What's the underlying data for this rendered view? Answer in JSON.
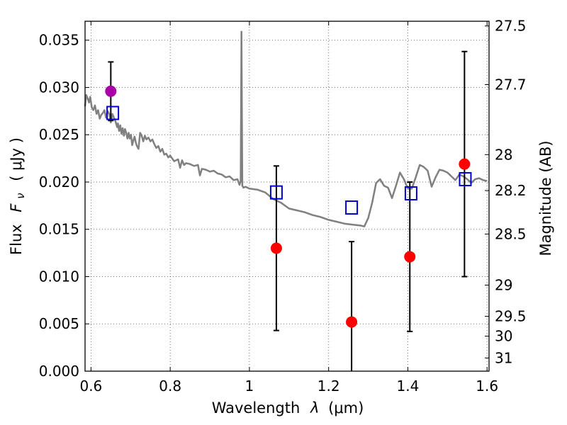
{
  "chart_data": {
    "type": "scatter",
    "title": "",
    "xlabel_text": "Wavelength",
    "xlabel_symbol": "λ",
    "xlabel_unit": "(μm)",
    "ylabel_text": "Flux",
    "ylabel_symbol": "F",
    "ylabel_subscript": "ν",
    "ylabel_unit": "( μJy )",
    "y2label": "Magnitude (AB)",
    "xlim": [
      0.585,
      1.605
    ],
    "ylim": [
      0.0,
      0.037
    ],
    "grid": true,
    "x_ticks": [
      {
        "value": 0.6,
        "label": "0.6"
      },
      {
        "value": 0.8,
        "label": "0.8"
      },
      {
        "value": 1.0,
        "label": "1"
      },
      {
        "value": 1.2,
        "label": "1.2"
      },
      {
        "value": 1.4,
        "label": "1.4"
      },
      {
        "value": 1.6,
        "label": "1.6"
      }
    ],
    "y_ticks": [
      {
        "value": 0.0,
        "label": "0.000"
      },
      {
        "value": 0.005,
        "label": "0.005"
      },
      {
        "value": 0.01,
        "label": "0.010"
      },
      {
        "value": 0.015,
        "label": "0.015"
      },
      {
        "value": 0.02,
        "label": "0.020"
      },
      {
        "value": 0.025,
        "label": "0.025"
      },
      {
        "value": 0.03,
        "label": "0.030"
      },
      {
        "value": 0.035,
        "label": "0.035"
      }
    ],
    "y2_ticks": [
      {
        "flux": 0.0365,
        "label": "27.5"
      },
      {
        "flux": 0.0303,
        "label": "27.7"
      },
      {
        "flux": 0.0229,
        "label": "28"
      },
      {
        "flux": 0.0191,
        "label": "28.2"
      },
      {
        "flux": 0.0145,
        "label": "28.5"
      },
      {
        "flux": 0.0091,
        "label": "29"
      },
      {
        "flux": 0.0058,
        "label": "29.5"
      },
      {
        "flux": 0.0037,
        "label": "30"
      },
      {
        "flux": 0.0014,
        "label": "31"
      }
    ],
    "colors": {
      "spectrum": "#808080",
      "photometry_red": "#ff0000",
      "photometry_magenta": "#aa00aa",
      "model": "#0000cc",
      "errorbar": "#000000"
    },
    "spectrum": {
      "x": [
        0.585,
        0.588,
        0.592,
        0.595,
        0.598,
        0.602,
        0.606,
        0.61,
        0.614,
        0.618,
        0.622,
        0.626,
        0.63,
        0.634,
        0.638,
        0.642,
        0.646,
        0.65,
        0.654,
        0.658,
        0.662,
        0.666,
        0.668,
        0.671,
        0.674,
        0.677,
        0.68,
        0.683,
        0.686,
        0.689,
        0.692,
        0.695,
        0.698,
        0.701,
        0.704,
        0.707,
        0.71,
        0.713,
        0.716,
        0.72,
        0.724,
        0.728,
        0.732,
        0.736,
        0.74,
        0.745,
        0.75,
        0.755,
        0.76,
        0.765,
        0.77,
        0.775,
        0.78,
        0.785,
        0.79,
        0.795,
        0.8,
        0.81,
        0.82,
        0.825,
        0.83,
        0.835,
        0.84,
        0.85,
        0.86,
        0.87,
        0.875,
        0.88,
        0.89,
        0.9,
        0.91,
        0.92,
        0.93,
        0.94,
        0.95,
        0.96,
        0.97,
        0.975,
        0.978,
        0.98,
        0.982,
        0.985,
        0.99,
        1.0,
        1.02,
        1.04,
        1.06,
        1.08,
        1.1,
        1.12,
        1.14,
        1.16,
        1.18,
        1.2,
        1.22,
        1.24,
        1.26,
        1.28,
        1.29,
        1.3,
        1.31,
        1.32,
        1.33,
        1.34,
        1.35,
        1.36,
        1.37,
        1.38,
        1.39,
        1.4,
        1.41,
        1.42,
        1.43,
        1.44,
        1.45,
        1.46,
        1.47,
        1.48,
        1.49,
        1.5,
        1.51,
        1.52,
        1.53,
        1.54,
        1.55,
        1.56,
        1.57,
        1.58,
        1.59,
        1.6
      ],
      "y": [
        0.028,
        0.0292,
        0.0288,
        0.0284,
        0.029,
        0.0279,
        0.0276,
        0.0281,
        0.0272,
        0.0276,
        0.0267,
        0.0271,
        0.0273,
        0.0276,
        0.0268,
        0.0275,
        0.0272,
        0.0263,
        0.0272,
        0.0268,
        0.0264,
        0.0258,
        0.0262,
        0.0254,
        0.026,
        0.0251,
        0.0257,
        0.0249,
        0.0256,
        0.0252,
        0.0246,
        0.0252,
        0.0246,
        0.025,
        0.0239,
        0.0244,
        0.0248,
        0.0242,
        0.0238,
        0.0235,
        0.0252,
        0.0249,
        0.0243,
        0.0249,
        0.0245,
        0.0247,
        0.0243,
        0.0245,
        0.024,
        0.0236,
        0.0238,
        0.0232,
        0.0235,
        0.0229,
        0.023,
        0.0226,
        0.0228,
        0.0222,
        0.0224,
        0.0215,
        0.0223,
        0.0218,
        0.022,
        0.0219,
        0.0217,
        0.0218,
        0.0207,
        0.0214,
        0.0213,
        0.0211,
        0.0212,
        0.0209,
        0.0208,
        0.0205,
        0.0206,
        0.0202,
        0.0203,
        0.0197,
        0.0201,
        0.0359,
        0.0196,
        0.0194,
        0.0195,
        0.0193,
        0.0192,
        0.0189,
        0.0182,
        0.0178,
        0.0172,
        0.017,
        0.0168,
        0.0165,
        0.0163,
        0.016,
        0.0158,
        0.0156,
        0.0155,
        0.0154,
        0.0153,
        0.0162,
        0.0178,
        0.0199,
        0.0203,
        0.0196,
        0.0194,
        0.0183,
        0.0196,
        0.021,
        0.0203,
        0.0193,
        0.0193,
        0.0205,
        0.0218,
        0.0216,
        0.0212,
        0.0195,
        0.0205,
        0.0213,
        0.0212,
        0.021,
        0.0206,
        0.0202,
        0.0208,
        0.0206,
        0.0203,
        0.0199,
        0.0203,
        0.0204,
        0.0202,
        0.0201
      ],
      "name": ""
    },
    "photometry": [
      {
        "x": 0.65,
        "y": 0.0296,
        "yerr": 0.0031,
        "color": "magenta"
      },
      {
        "x": 1.068,
        "y": 0.013,
        "yerr": 0.0087,
        "color": "red"
      },
      {
        "x": 1.258,
        "y": 0.0052,
        "yerr": 0.0085,
        "color": "red"
      },
      {
        "x": 1.405,
        "y": 0.0121,
        "yerr": 0.0079,
        "color": "red"
      },
      {
        "x": 1.543,
        "y": 0.0219,
        "yerr": 0.0119,
        "color": "red"
      }
    ],
    "model_points": [
      {
        "x": 0.655,
        "y": 0.0273
      },
      {
        "x": 1.068,
        "y": 0.0189
      },
      {
        "x": 1.258,
        "y": 0.0173
      },
      {
        "x": 1.408,
        "y": 0.0188
      },
      {
        "x": 1.545,
        "y": 0.0203
      }
    ]
  }
}
